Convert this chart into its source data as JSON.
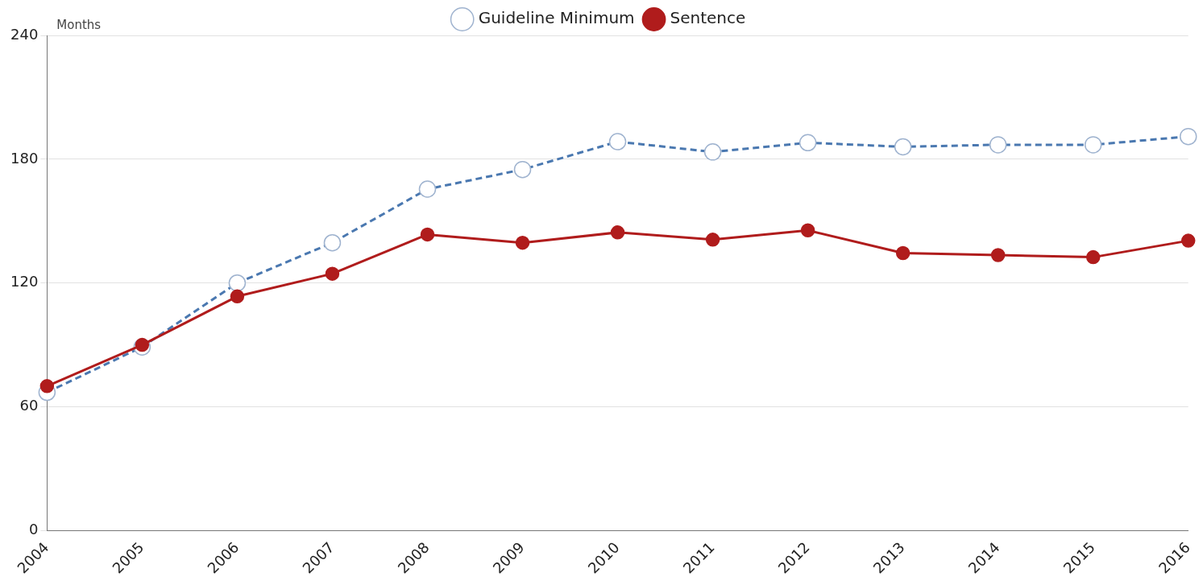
{
  "chart_data": {
    "type": "line",
    "ylabel": "Months",
    "categories": [
      "2004",
      "2005",
      "2006",
      "2007",
      "2008",
      "2009",
      "2010",
      "2011",
      "2012",
      "2013",
      "2014",
      "2015",
      "2016"
    ],
    "series": [
      {
        "name": "Guideline Minimum",
        "color": "#4a78b0",
        "line_style": "dashed",
        "values": [
          67,
          89,
          120,
          139.5,
          165.5,
          175,
          188.5,
          183.5,
          188,
          186,
          187,
          187,
          191
        ]
      },
      {
        "name": "Sentence",
        "color": "#b01c1c",
        "line_style": "solid",
        "values": [
          70,
          90,
          113.5,
          124.5,
          143.5,
          139.5,
          144.5,
          141,
          145.5,
          134.5,
          133.5,
          132.5,
          140.5
        ]
      }
    ],
    "ylim": [
      0,
      240
    ],
    "yticks": [
      0,
      60,
      120,
      180,
      240
    ],
    "grid": "y",
    "legend": "top",
    "marker": "circle"
  }
}
